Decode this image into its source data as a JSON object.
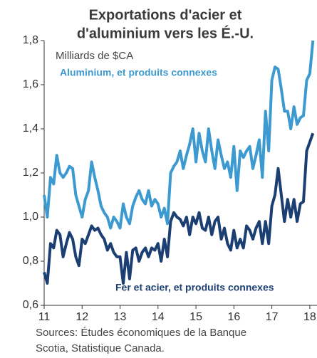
{
  "chart_data": {
    "type": "line",
    "title": [
      "Exportations d'acier et",
      "d'aluminium vers les É.-U."
    ],
    "y_label": "Milliards de $CA",
    "source": [
      "Sources: Études économiques de la Banque",
      "Scotia, Statistique Canada."
    ],
    "x": [
      11,
      11.083,
      11.167,
      11.25,
      11.333,
      11.417,
      11.5,
      11.583,
      11.667,
      11.75,
      11.833,
      11.917,
      12,
      12.083,
      12.167,
      12.25,
      12.333,
      12.417,
      12.5,
      12.583,
      12.667,
      12.75,
      12.833,
      12.917,
      13,
      13.083,
      13.167,
      13.25,
      13.333,
      13.417,
      13.5,
      13.583,
      13.667,
      13.75,
      13.833,
      13.917,
      14,
      14.083,
      14.167,
      14.25,
      14.333,
      14.417,
      14.5,
      14.583,
      14.667,
      14.75,
      14.833,
      14.917,
      15,
      15.083,
      15.167,
      15.25,
      15.333,
      15.417,
      15.5,
      15.583,
      15.667,
      15.75,
      15.833,
      15.917,
      16,
      16.083,
      16.167,
      16.25,
      16.333,
      16.417,
      16.5,
      16.583,
      16.667,
      16.75,
      16.833,
      16.917,
      17,
      17.083,
      17.167,
      17.25,
      17.333,
      17.417,
      17.5,
      17.583,
      17.667,
      17.75,
      17.833,
      17.917,
      18,
      18.083
    ],
    "series": [
      {
        "name": "Aluminium, et produits connexes",
        "color": "#3d9ad1",
        "values": [
          1.1,
          1.0,
          1.18,
          1.15,
          1.28,
          1.2,
          1.18,
          1.2,
          1.23,
          1.22,
          1.1,
          1.05,
          1.0,
          1.08,
          1.12,
          1.25,
          1.18,
          1.12,
          1.05,
          1.02,
          1.0,
          0.95,
          1.0,
          0.98,
          0.95,
          1.06,
          1.0,
          0.97,
          1.05,
          1.09,
          1.12,
          1.08,
          1.06,
          1.12,
          1.05,
          1.08,
          1.06,
          1.0,
          1.04,
          0.97,
          1.2,
          1.23,
          1.25,
          1.3,
          1.22,
          1.28,
          1.33,
          1.4,
          1.25,
          1.38,
          1.3,
          1.25,
          1.4,
          1.3,
          1.22,
          1.35,
          1.28,
          1.22,
          1.25,
          1.18,
          1.32,
          1.12,
          1.3,
          1.27,
          1.3,
          1.32,
          1.22,
          1.28,
          1.35,
          1.18,
          1.48,
          1.3,
          1.62,
          1.68,
          1.67,
          1.58,
          1.48,
          1.48,
          1.4,
          1.5,
          1.42,
          1.45,
          1.46,
          1.62,
          1.65,
          1.8
        ]
      },
      {
        "name": "Fer et acier, et produits connexes",
        "color": "#1b3f73",
        "values": [
          0.75,
          0.7,
          0.88,
          0.86,
          0.94,
          0.92,
          0.82,
          0.88,
          0.93,
          0.9,
          0.82,
          0.78,
          0.9,
          0.88,
          0.92,
          0.96,
          0.94,
          0.95,
          0.92,
          0.9,
          0.85,
          0.88,
          0.84,
          0.82,
          0.82,
          0.7,
          0.84,
          0.72,
          0.85,
          0.86,
          0.8,
          0.84,
          0.86,
          0.82,
          0.86,
          0.85,
          0.88,
          0.8,
          0.9,
          0.82,
          0.98,
          1.02,
          1.0,
          0.99,
          0.96,
          1.0,
          0.92,
          1.0,
          0.97,
          1.02,
          0.95,
          0.94,
          1.0,
          0.92,
          0.98,
          1.0,
          0.9,
          0.95,
          0.88,
          0.85,
          0.94,
          0.86,
          0.9,
          0.86,
          0.96,
          0.94,
          0.9,
          0.95,
          0.98,
          0.88,
          0.98,
          0.88,
          1.05,
          1.1,
          1.22,
          1.1,
          0.98,
          1.08,
          1.0,
          1.08,
          0.98,
          1.06,
          1.07,
          1.3,
          1.34,
          1.38
        ]
      }
    ],
    "xlim": [
      11,
      18.19
    ],
    "xticks": [
      11,
      12,
      13,
      14,
      15,
      16,
      17,
      18
    ],
    "ylim": [
      0.6,
      1.8
    ],
    "yticks": [
      {
        "value": 0.6,
        "label": "0,6"
      },
      {
        "value": 0.8,
        "label": "0,8"
      },
      {
        "value": 1.0,
        "label": "1,0"
      },
      {
        "value": 1.2,
        "label": "1,2"
      },
      {
        "value": 1.4,
        "label": "1,4"
      },
      {
        "value": 1.6,
        "label": "1,6"
      },
      {
        "value": 1.8,
        "label": "1,8"
      }
    ]
  }
}
